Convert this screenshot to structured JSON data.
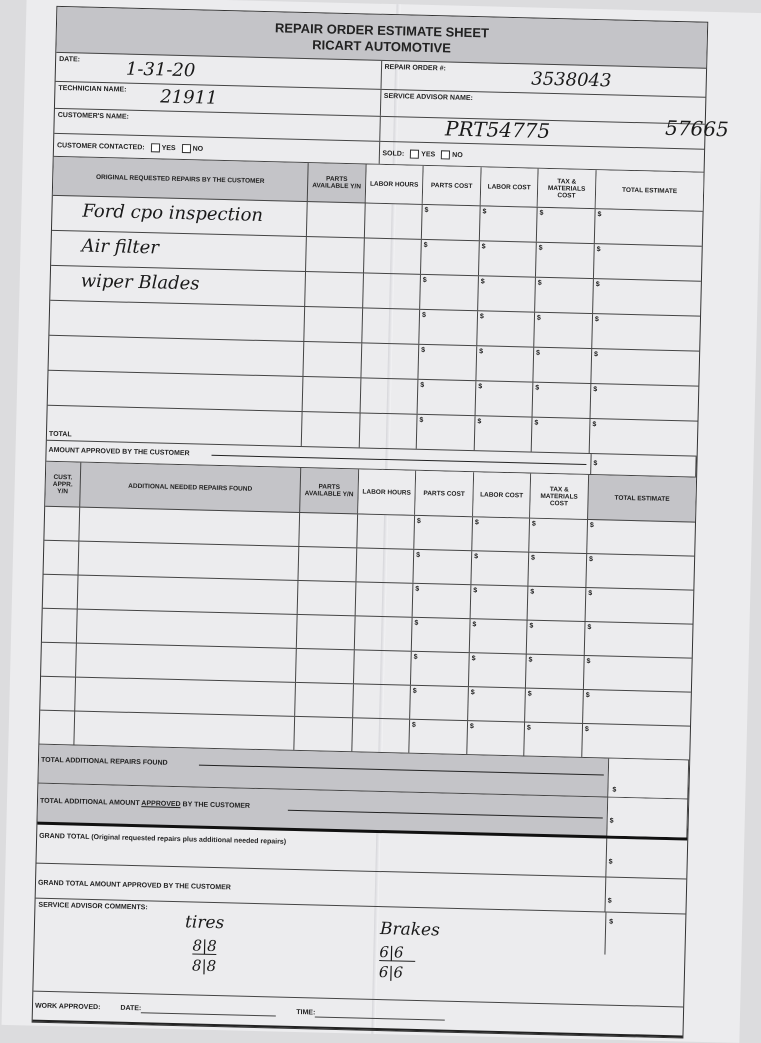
{
  "header": {
    "title": "REPAIR ORDER ESTIMATE SHEET",
    "company": "RICART AUTOMOTIVE"
  },
  "info": {
    "date_label": "DATE:",
    "date_value": "1-31-20",
    "repair_order_label": "REPAIR ORDER #:",
    "repair_order_value": "3538043",
    "technician_label": "TECHNICIAN NAME:",
    "technician_value": "21911",
    "advisor_label": "SERVICE ADVISOR NAME:",
    "customer_label": "CUSTOMER'S NAME:",
    "handwritten_code": "PRT54775",
    "handwritten_code2": "57665",
    "contacted_label": "CUSTOMER CONTACTED:",
    "sold_label": "SOLD:",
    "yes": "YES",
    "no": "NO"
  },
  "table1": {
    "headers": [
      "ORIGINAL REQUESTED REPAIRS BY THE CUSTOMER",
      "PARTS AVAILABLE Y/N",
      "LABOR HOURS",
      "PARTS COST",
      "LABOR COST",
      "TAX & MATERIALS COST",
      "TOTAL ESTIMATE"
    ],
    "rows": [
      "Ford cpo inspection",
      "Air filter",
      "wiper Blades",
      "",
      "",
      "",
      ""
    ],
    "total_label": "TOTAL",
    "approved_label": "AMOUNT APPROVED BY THE CUSTOMER",
    "currency": "$"
  },
  "table2": {
    "headers": [
      "CUST. APPR. Y/N",
      "ADDITIONAL NEEDED REPAIRS FOUND",
      "PARTS AVAILABLE Y/N",
      "LABOR HOURS",
      "PARTS COST",
      "LABOR COST",
      "TAX & MATERIALS COST",
      "TOTAL ESTIMATE"
    ]
  },
  "totals": {
    "additional_found": "TOTAL ADDITIONAL REPAIRS FOUND",
    "additional_approved_pre": "TOTAL ADDITIONAL AMOUNT ",
    "additional_approved_em": "APPROVED",
    "additional_approved_post": " BY THE CUSTOMER",
    "grand_total": "GRAND TOTAL (Original requested repairs plus additional needed repairs)",
    "grand_total_approved": "GRAND TOTAL AMOUNT APPROVED BY THE CUSTOMER"
  },
  "comments": {
    "label": "SERVICE ADVISOR COMMENTS:",
    "tires_label": "tires",
    "tires_top": "8|8",
    "tires_bottom": "8|8",
    "brakes_label": "Brakes",
    "brakes_top": "6|6",
    "brakes_bottom": "6|6"
  },
  "footer": {
    "work_approved": "WORK APPROVED:",
    "date": "DATE:",
    "time": "TIME:"
  }
}
